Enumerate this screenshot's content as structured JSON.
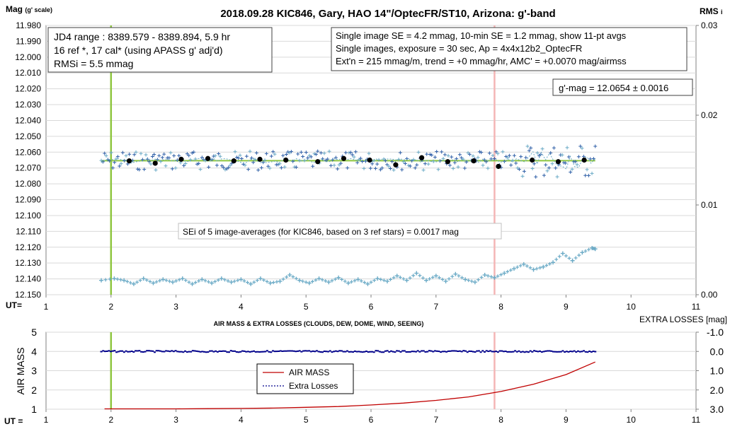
{
  "chart_data": [
    {
      "type": "scatter",
      "title": "2018.09.28  KIC846,  Gary, HAO 14\"/OptecFR/ST10,  Arizona:  g'-band",
      "ylabel_left_main": "Mag",
      "ylabel_left_sub": "(g' scale)",
      "ylabel_right_main": "RMS",
      "ylabel_right_sub": "i",
      "xlabel": "UT=",
      "xlim": [
        1,
        11
      ],
      "ylim": [
        12.15,
        11.98
      ],
      "y2lim": [
        0,
        0.03
      ],
      "x_ticks": [
        "1",
        "2",
        "3",
        "4",
        "5",
        "6",
        "7",
        "8",
        "9",
        "10",
        "11"
      ],
      "y_ticks": [
        "11.980",
        "11.990",
        "12.000",
        "12.010",
        "12.020",
        "12.030",
        "12.040",
        "12.050",
        "12.060",
        "12.070",
        "12.080",
        "12.090",
        "12.100",
        "12.110",
        "12.120",
        "12.130",
        "12.140",
        "12.150"
      ],
      "y2_ticks": [
        "0.03",
        "0.02",
        "0.01",
        "0.00"
      ],
      "info_left": [
        "JD4 range : 8389.579 - 8389.894,  5.9  hr",
        "16 ref *, 17 cal* (using APASS g' adj'd)",
        "RMSi = 5.5 mmag"
      ],
      "info_right": [
        "Single image SE = 4.2 mmag, 10-min SE = 1.2 mmag, show  11-pt avgs",
        "Single images, exposure = 30 sec, Ap = 4x4x12b2_OptecFR",
        "Ext'n = 215 mmag/m, trend =  +0 mmag/hr, AMC' = +0.0070 mag/airmss"
      ],
      "gmag_box": "g'-mag = 12.0654 ± 0.0016",
      "sei_note": "SEi of 5 image-averages (for KIC846, based on 3 ref stars) = 0.0017 mag",
      "mean_mag": 12.0654,
      "vertical_markers": [
        {
          "x": 2.0,
          "color": "#8ec63f"
        },
        {
          "x": 7.9,
          "color": "#f4b6b6"
        }
      ],
      "series": [
        {
          "marker": "black-dot",
          "x": [
            2.28,
            2.68,
            3.08,
            3.49,
            3.89,
            4.29,
            4.69,
            5.18,
            5.58,
            5.98,
            6.38,
            6.78,
            7.18,
            7.58,
            7.96,
            8.48,
            8.88,
            9.28
          ],
          "y": [
            12.0655,
            12.067,
            12.0645,
            12.064,
            12.0655,
            12.0645,
            12.065,
            12.066,
            12.064,
            12.065,
            12.068,
            12.0635,
            12.066,
            12.0655,
            12.069,
            12.065,
            12.066,
            12.065
          ]
        },
        {
          "marker": "rms-crosses",
          "x": [
            1.85,
            2.05,
            2.2,
            2.35,
            2.5,
            2.65,
            2.8,
            2.95,
            3.1,
            3.25,
            3.4,
            3.55,
            3.7,
            3.85,
            4.0,
            4.15,
            4.3,
            4.45,
            4.6,
            4.75,
            4.9,
            5.05,
            5.2,
            5.35,
            5.5,
            5.65,
            5.8,
            5.95,
            6.1,
            6.25,
            6.4,
            6.55,
            6.7,
            6.85,
            7.0,
            7.15,
            7.3,
            7.45,
            7.6,
            7.75,
            7.9,
            8.05,
            8.2,
            8.35,
            8.5,
            8.65,
            8.8,
            8.95,
            9.1,
            9.25,
            9.4,
            9.45
          ],
          "y": [
            0.0016,
            0.0018,
            0.0016,
            0.0012,
            0.0018,
            0.0013,
            0.0017,
            0.0014,
            0.0018,
            0.0012,
            0.0017,
            0.0013,
            0.0018,
            0.0014,
            0.0017,
            0.0012,
            0.0018,
            0.0013,
            0.0015,
            0.0022,
            0.0016,
            0.0013,
            0.0018,
            0.0014,
            0.0019,
            0.0013,
            0.0017,
            0.0012,
            0.0018,
            0.0015,
            0.0021,
            0.0016,
            0.0024,
            0.0016,
            0.0021,
            0.0015,
            0.0023,
            0.0017,
            0.0014,
            0.0022,
            0.0019,
            0.0024,
            0.0029,
            0.0034,
            0.0028,
            0.0031,
            0.0036,
            0.0046,
            0.0038,
            0.0047,
            0.0052,
            0.0051
          ]
        }
      ]
    },
    {
      "type": "line",
      "title": "AIR MASS & EXTRA LOSSES (CLOUDS, DEW, DOME, WIND, SEEING)",
      "ylabel": "AIR MASS",
      "y2label": "EXTRA LOSSES [mag]",
      "xlabel": "UT =",
      "xlim": [
        1,
        11
      ],
      "ylim": [
        1,
        5
      ],
      "y2lim": [
        3.0,
        -1.0
      ],
      "x_ticks": [
        "1",
        "2",
        "3",
        "4",
        "5",
        "6",
        "7",
        "8",
        "9",
        "10",
        "11"
      ],
      "y_ticks": [
        "5",
        "4",
        "3",
        "2",
        "1"
      ],
      "y2_ticks": [
        "-1.0",
        "0.0",
        "1.0",
        "2.0",
        "3.0"
      ],
      "series": [
        {
          "name": "AIR MASS",
          "color": "#c00000",
          "x": [
            1.9,
            2.5,
            3.0,
            3.5,
            4.0,
            4.5,
            5.0,
            5.5,
            6.0,
            6.5,
            7.0,
            7.5,
            8.0,
            8.5,
            9.0,
            9.45
          ],
          "y": [
            1.02,
            1.02,
            1.02,
            1.03,
            1.04,
            1.06,
            1.1,
            1.14,
            1.22,
            1.32,
            1.46,
            1.64,
            1.92,
            2.3,
            2.8,
            3.45
          ]
        },
        {
          "name": "Extra Losses",
          "color": "#00008b",
          "x": [
            1.85,
            2.5,
            3.0,
            3.5,
            4.0,
            4.5,
            5.0,
            5.5,
            6.0,
            6.5,
            7.0,
            7.5,
            8.0,
            8.5,
            9.0,
            9.45
          ],
          "y": [
            0.02,
            0.0,
            0.0,
            0.0,
            0.0,
            0.0,
            0.0,
            0.0,
            0.0,
            0.0,
            0.0,
            0.0,
            0.0,
            0.0,
            0.0,
            0.02
          ]
        }
      ],
      "vertical_markers": [
        {
          "x": 2.0,
          "color": "#8ec63f"
        },
        {
          "x": 7.9,
          "color": "#f4b6b6"
        }
      ]
    }
  ]
}
